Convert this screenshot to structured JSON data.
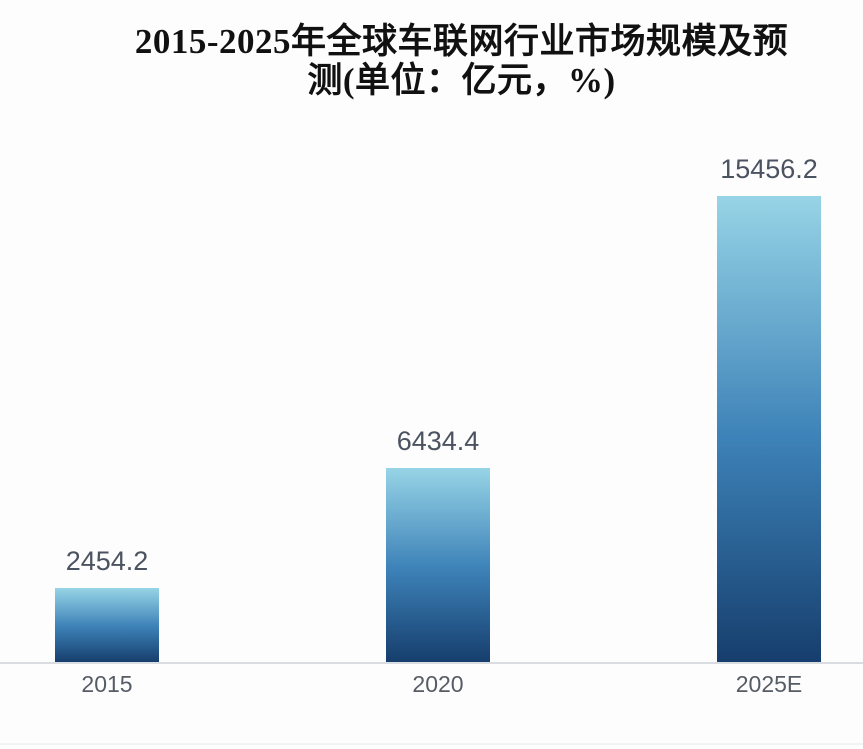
{
  "title": {
    "line1": "2015-2025年全球车联网行业市场规模及预",
    "line2": "测(单位：亿元，%)"
  },
  "chart_data": {
    "type": "bar",
    "title": "2015-2025年全球车联网行业市场规模及预测(单位：亿元，%)",
    "unit_label": "亿元，%",
    "categories": [
      "2015",
      "2020",
      "2025E"
    ],
    "values": [
      2454.2,
      6434.4,
      15456.2
    ],
    "value_labels_shown": true,
    "ylim": [
      0,
      15456.2
    ],
    "y_axis_visible": false,
    "grid": false,
    "legend": false,
    "colors": {
      "bar_gradient_top": "#97d4e6",
      "bar_gradient_mid": "#3d82b8",
      "bar_gradient_bottom": "#163e6d",
      "value_label": "#4b5260",
      "axis_label": "#565c66",
      "axis_line": "#d9dce0",
      "title": "#111111",
      "background": "#fdfdfd"
    }
  }
}
